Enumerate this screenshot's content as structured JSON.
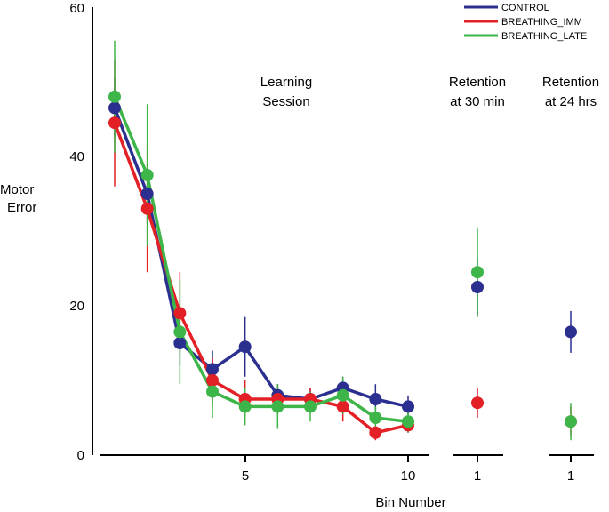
{
  "chart_data": {
    "type": "line",
    "xlabel": "Bin Number",
    "ylabel_lines": [
      "Motor",
      "Error"
    ],
    "ylim": [
      0,
      60
    ],
    "yticks": [
      "0",
      "20",
      "40",
      "60"
    ],
    "learning_x_ticks": [
      "5",
      "10"
    ],
    "retention_x_tick": "1",
    "annotations": {
      "learning": [
        "Learning",
        "Session"
      ],
      "retention30": [
        "Retention",
        "at 30 min"
      ],
      "retention24": [
        "Retention",
        "at 24 hrs"
      ]
    },
    "series": [
      {
        "name": "CONTROL",
        "color": "#2b2f8f",
        "learning": [
          46.5,
          35,
          15,
          11.5,
          14.5,
          8,
          7.5,
          9,
          7.5,
          6.5
        ],
        "learning_err": [
          4,
          4,
          3,
          2.5,
          4,
          1.5,
          1.5,
          1.5,
          2,
          1.5
        ],
        "retention30": 22.5,
        "retention30_err": 4,
        "retention24": 16.5,
        "retention24_err": 2.8
      },
      {
        "name": "BREATHING_IMM",
        "color": "#e32026",
        "learning": [
          44.5,
          33,
          19,
          10,
          7.5,
          7.5,
          7.5,
          6.5,
          3,
          4
        ],
        "learning_err": [
          8.5,
          8.5,
          5.5,
          3,
          2.5,
          2,
          1.5,
          2,
          1,
          1
        ],
        "retention30": 7,
        "retention30_err": 2,
        "retention24": 4.5,
        "retention24_err": 2
      },
      {
        "name": "BREATHING_LATE",
        "color": "#3eb549",
        "learning": [
          48,
          37.5,
          16.5,
          8.5,
          6.5,
          6.5,
          6.5,
          8,
          5,
          4.5
        ],
        "learning_err": [
          7.5,
          9.5,
          7,
          3.5,
          2.5,
          3,
          2,
          2.5,
          1.5,
          1.5
        ],
        "retention30": 24.5,
        "retention30_err": 6,
        "retention24": 4.5,
        "retention24_err": 2.5
      }
    ]
  }
}
